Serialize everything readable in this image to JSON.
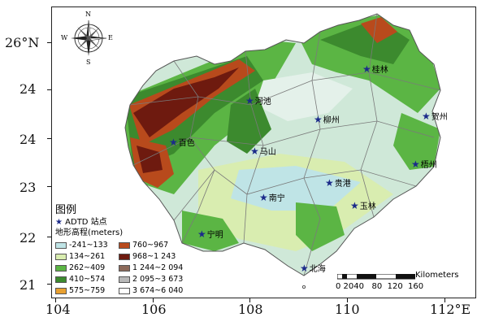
{
  "axes": {
    "lat_labels": [
      "26°N",
      "24",
      "24",
      "23",
      "22",
      "21"
    ],
    "lon_labels": [
      "104",
      "106",
      "108",
      "110",
      "112°E"
    ]
  },
  "compass": {
    "n": "N",
    "s": "S",
    "e": "E",
    "w": "W"
  },
  "stations": [
    {
      "name": "桂林"
    },
    {
      "name": "河池"
    },
    {
      "name": "柳州"
    },
    {
      "name": "贺州"
    },
    {
      "name": "百色"
    },
    {
      "name": "马山"
    },
    {
      "name": "梧州"
    },
    {
      "name": "贵港"
    },
    {
      "name": "南宁"
    },
    {
      "name": "玉林"
    },
    {
      "name": "宁明"
    },
    {
      "name": "北海"
    }
  ],
  "legend": {
    "title": "图例",
    "station_label": "ADTD 站点",
    "elevation_label": "地形高程(meters)",
    "classes": [
      {
        "label": "-241~133",
        "color": "#bfe4e6"
      },
      {
        "label": "134~261",
        "color": "#d9edb0"
      },
      {
        "label": "262~409",
        "color": "#5bb544"
      },
      {
        "label": "410~574",
        "color": "#3c8a2e"
      },
      {
        "label": "575~759",
        "color": "#e8a030"
      },
      {
        "label": "760~967",
        "color": "#b84a1c"
      },
      {
        "label": "968~1 243",
        "color": "#6e1a0f"
      },
      {
        "label": "1 244~2 094",
        "color": "#8c6a5a"
      },
      {
        "label": "2 095~3 673",
        "color": "#b8b8b8"
      },
      {
        "label": "3 674~6 040",
        "color": "#ffffff"
      }
    ]
  },
  "scalebar": {
    "unit": "Kilometers",
    "ticks": "0 2040   80  120  160"
  },
  "colors": {
    "station_star": "#1b2a8a",
    "county_border": "#7a7a7a"
  }
}
